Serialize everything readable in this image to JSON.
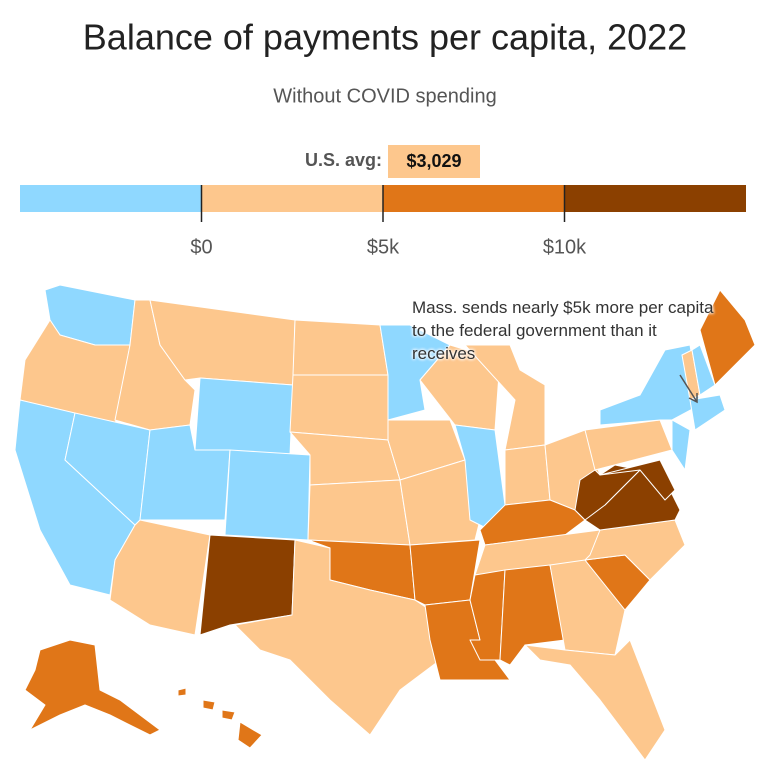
{
  "title": "Balance of payments per capita, 2022",
  "subtitle": "Without COVID spending",
  "legend": {
    "label": "U.S. avg:",
    "average": {
      "value": 3029,
      "label": "$3,029"
    },
    "xlim": [
      -5000,
      15000
    ],
    "breaks": [
      -5000,
      0,
      5000,
      10000,
      15000
    ],
    "colors": [
      "#8fd8ff",
      "#fdc78d",
      "#e07618",
      "#8b4000"
    ],
    "xticks": [
      {
        "value": 0,
        "label": "$0"
      },
      {
        "value": 5000,
        "label": "$5k"
      },
      {
        "value": 10000,
        "label": "$10k"
      }
    ]
  },
  "annotation": "Mass. sends nearly $5k more per capita to the federal government than it receives"
}
